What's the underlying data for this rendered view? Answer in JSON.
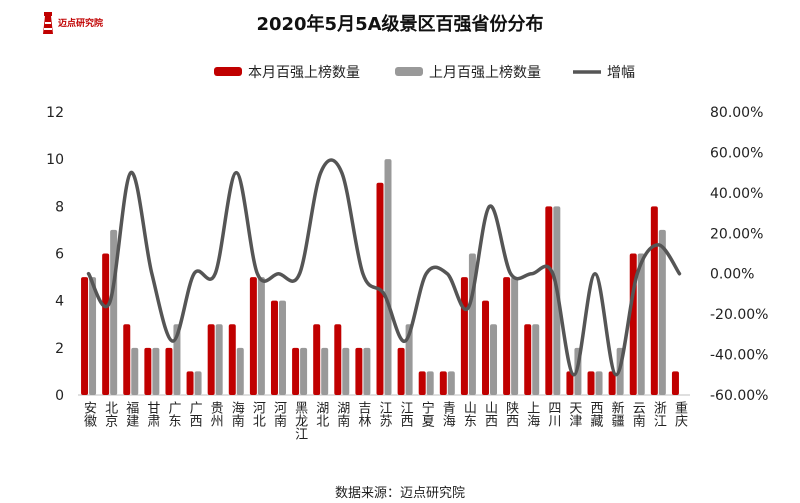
{
  "logo": {
    "text": "迈点研究院",
    "color": "#c00000"
  },
  "source": "数据来源：迈点研究院",
  "chart_data": {
    "type": "bar",
    "title": "2020年5月5A级景区百强省份分布",
    "categories": [
      "安徽",
      "北京",
      "福建",
      "甘肃",
      "广东",
      "广西",
      "贵州",
      "海南",
      "河北",
      "河南",
      "黑龙江",
      "湖北",
      "湖南",
      "吉林",
      "江苏",
      "江西",
      "宁夏",
      "青海",
      "山东",
      "山西",
      "陕西",
      "上海",
      "四川",
      "天津",
      "西藏",
      "新疆",
      "云南",
      "浙江",
      "重庆"
    ],
    "series": [
      {
        "name": "本月百强上榜数量",
        "type": "bar",
        "axis": "left",
        "color": "#c00000",
        "values": [
          5,
          6,
          3,
          2,
          2,
          1,
          3,
          3,
          5,
          4,
          2,
          3,
          3,
          2,
          9,
          2,
          1,
          1,
          5,
          4,
          5,
          3,
          8,
          1,
          1,
          1,
          6,
          8,
          1
        ]
      },
      {
        "name": "上月百强上榜数量",
        "type": "bar",
        "axis": "left",
        "color": "#999999",
        "values": [
          5,
          7,
          2,
          2,
          3,
          1,
          3,
          2,
          5,
          4,
          2,
          2,
          2,
          2,
          10,
          3,
          1,
          1,
          6,
          3,
          5,
          3,
          8,
          2,
          1,
          2,
          6,
          7,
          0
        ]
      },
      {
        "name": "增幅",
        "type": "line",
        "axis": "right",
        "color": "#555555",
        "values": [
          0.0,
          -14.29,
          50.0,
          0.0,
          -33.33,
          0.0,
          0.0,
          50.0,
          0.0,
          0.0,
          0.0,
          50.0,
          50.0,
          0.0,
          -10.0,
          -33.33,
          0.0,
          0.0,
          -16.67,
          33.33,
          0.0,
          0.0,
          0.0,
          -50.0,
          0.0,
          -50.0,
          0.0,
          14.29,
          0.0
        ]
      }
    ],
    "y_left": {
      "min": 0,
      "max": 12,
      "ticks": [
        "0",
        "2",
        "4",
        "6",
        "8",
        "10",
        "12"
      ]
    },
    "y_right": {
      "min": -60,
      "max": 80,
      "ticks": [
        "-60.00%",
        "-40.00%",
        "-20.00%",
        "0.00%",
        "20.00%",
        "40.00%",
        "60.00%",
        "80.00%"
      ]
    },
    "grid": false,
    "legend_position": "top"
  }
}
